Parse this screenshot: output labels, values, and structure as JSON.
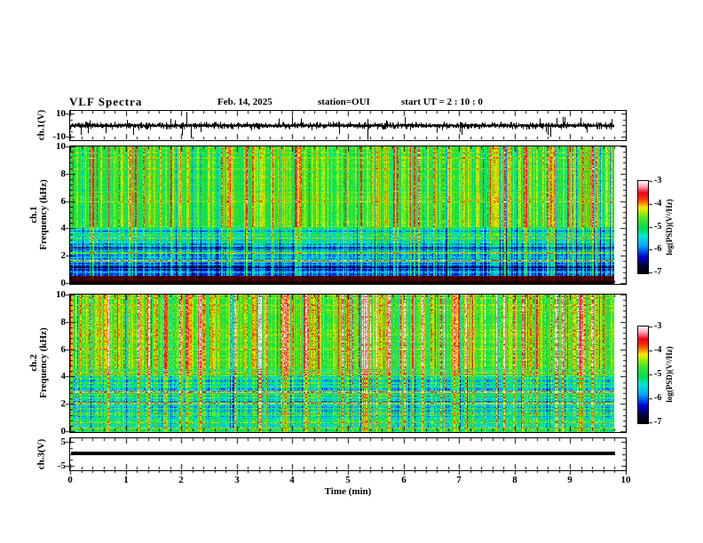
{
  "header": {
    "title": "VLF Spectra",
    "date": "Feb. 14, 2025",
    "station": "station=OUI",
    "start_ut": "start UT =  2 : 10 : 0"
  },
  "xaxis": {
    "label": "Time (min)",
    "min": 0,
    "max": 10,
    "major_ticks": [
      0,
      1,
      2,
      3,
      4,
      5,
      6,
      7,
      8,
      9,
      10
    ],
    "minor_step": 0.2,
    "data_end_min": 9.8
  },
  "line_color": "#000000",
  "colormap_stops": [
    [
      0.0,
      "#000000"
    ],
    [
      0.08,
      "#00003c"
    ],
    [
      0.18,
      "#0000d8"
    ],
    [
      0.3,
      "#00a8ff"
    ],
    [
      0.4,
      "#00e8d0"
    ],
    [
      0.48,
      "#00dd55"
    ],
    [
      0.58,
      "#3ae62e"
    ],
    [
      0.66,
      "#a8ec00"
    ],
    [
      0.71,
      "#f5ee00"
    ],
    [
      0.75,
      "#ff9900"
    ],
    [
      0.8,
      "#ff3c00"
    ],
    [
      0.87,
      "#f00018"
    ],
    [
      0.94,
      "#ff9fae"
    ],
    [
      1.0,
      "#ffffff"
    ]
  ],
  "chart_data": [
    {
      "id": "ch1_waveform",
      "type": "line",
      "ylabel": "ch.1(V)",
      "ylim": [
        -10,
        10
      ],
      "yticks": [
        10,
        -10
      ],
      "xlim_minutes": [
        0,
        10
      ],
      "description": "broadband noise of about ±2 V around 0 V with impulsive spikes",
      "noise_sigma_volts": 1.1,
      "spikes": [
        {
          "t": 0.32,
          "v": -5.5
        },
        {
          "t": 1.02,
          "v": 4.0
        },
        {
          "t": 2.1,
          "v": 9.5
        },
        {
          "t": 2.18,
          "v": -9.0
        },
        {
          "t": 4.15,
          "v": 5.0
        },
        {
          "t": 5.35,
          "v": -10.0
        },
        {
          "t": 6.6,
          "v": -5.0
        },
        {
          "t": 7.05,
          "v": -6.5
        },
        {
          "t": 8.65,
          "v": -8.0
        },
        {
          "t": 8.9,
          "v": 6.0
        },
        {
          "t": 9.3,
          "v": -5.0
        }
      ],
      "seed": 7
    },
    {
      "id": "ch1_spectrogram",
      "type": "heatmap",
      "ylabel_lines": [
        "ch.1",
        "Frequency (kHz)"
      ],
      "ylim": [
        0,
        10
      ],
      "yticks": [
        0,
        2,
        4,
        6,
        8,
        10
      ],
      "colorbar": {
        "label": "log(PSD)(V²/Hz)",
        "ticks": [
          -3,
          -4,
          -5,
          -6,
          -7
        ],
        "lim": [
          -7,
          -3
        ]
      },
      "description": "green background above ~4 kHz with vertical sferic streaks (yellow/red/dark), cyan-blue 3-4 kHz, dark blue 0.5-3 kHz with many horizontal hum lines, dark-red band near 0.3-0.5 kHz, black at bottom",
      "render": {
        "seed": 11,
        "bands": [
          {
            "f_lo": 4.2,
            "f_hi": 10.01,
            "base": 0.53,
            "row_var": 0.03,
            "col_scale": 1.0
          },
          {
            "f_lo": 3.0,
            "f_hi": 4.2,
            "base": 0.4,
            "row_var": 0.1,
            "col_scale": 0.9
          },
          {
            "f_lo": 1.55,
            "f_hi": 3.0,
            "base": 0.25,
            "row_var": 0.13,
            "col_scale": 0.85
          },
          {
            "f_lo": 0.55,
            "f_hi": 1.55,
            "base": 0.17,
            "row_var": 0.11,
            "col_scale": 0.8
          },
          {
            "f_lo": 0.22,
            "f_hi": 0.55,
            "base": 0.5,
            "row_var": 0.05,
            "col_scale": 0.5,
            "tint": "#8e0000"
          },
          {
            "f_lo": 0.0,
            "f_hi": 0.22,
            "base": 0.5,
            "row_var": 0.04,
            "col_scale": 0.3,
            "tint": "#200000"
          }
        ],
        "streaks": {
          "strong_p": 0.09,
          "strong_amp": 0.27,
          "med_p": 0.22,
          "med_amp": 0.13,
          "dark_p": 0.06,
          "dark_amp": -0.17,
          "base_jitter": 0.05
        },
        "hline_p": 0.3,
        "hline_amp": 0.17,
        "noise": 0.06,
        "bright_rows": [
          {
            "f": 1.75,
            "amp": 0.42
          },
          {
            "f": 2.3,
            "amp": 0.25
          },
          {
            "f": 2.85,
            "amp": 0.22
          },
          {
            "f": 3.35,
            "amp": 0.2
          },
          {
            "f": 0.9,
            "amp": 0.2
          }
        ]
      }
    },
    {
      "id": "ch2_spectrogram",
      "type": "heatmap",
      "ylabel_lines": [
        "ch.2",
        "Frequency (kHz)"
      ],
      "ylim": [
        0,
        10
      ],
      "yticks": [
        0,
        2,
        4,
        6,
        8,
        10
      ],
      "colorbar": {
        "label": "log(PSD)(V²/Hz)",
        "ticks": [
          -3,
          -4,
          -5,
          -6,
          -7
        ],
        "lim": [
          -7,
          -3
        ]
      },
      "description": "green background above ~4.5 kHz with frequent strong red/orange vertical streaks, cyan-blue 1-4.5 kHz with horizontal hum lines, teal-green near 0 kHz",
      "render": {
        "seed": 23,
        "bands": [
          {
            "f_lo": 4.6,
            "f_hi": 10.01,
            "base": 0.56,
            "row_var": 0.03,
            "col_scale": 1.0
          },
          {
            "f_lo": 3.2,
            "f_hi": 4.6,
            "base": 0.45,
            "row_var": 0.09,
            "col_scale": 0.9
          },
          {
            "f_lo": 1.1,
            "f_hi": 3.2,
            "base": 0.34,
            "row_var": 0.12,
            "col_scale": 0.85
          },
          {
            "f_lo": 0.35,
            "f_hi": 1.1,
            "base": 0.41,
            "row_var": 0.12,
            "col_scale": 0.8
          },
          {
            "f_lo": 0.0,
            "f_hi": 0.35,
            "base": 0.44,
            "row_var": 0.15,
            "col_scale": 0.6
          }
        ],
        "streaks": {
          "strong_p": 0.13,
          "strong_amp": 0.3,
          "med_p": 0.24,
          "med_amp": 0.14,
          "dark_p": 0.05,
          "dark_amp": -0.15,
          "base_jitter": 0.05
        },
        "hline_p": 0.32,
        "hline_amp": 0.15,
        "noise": 0.06,
        "bright_rows": [
          {
            "f": 2.1,
            "amp": 0.22
          },
          {
            "f": 3.0,
            "amp": 0.18
          }
        ]
      }
    },
    {
      "id": "ch3_waveform",
      "type": "line",
      "ylabel": "ch.3(V)",
      "ylim": [
        -5,
        5
      ],
      "yticks": [
        5,
        -5
      ],
      "constant_value": 0,
      "description": "flat thick black line at 0 V for the full record"
    }
  ]
}
